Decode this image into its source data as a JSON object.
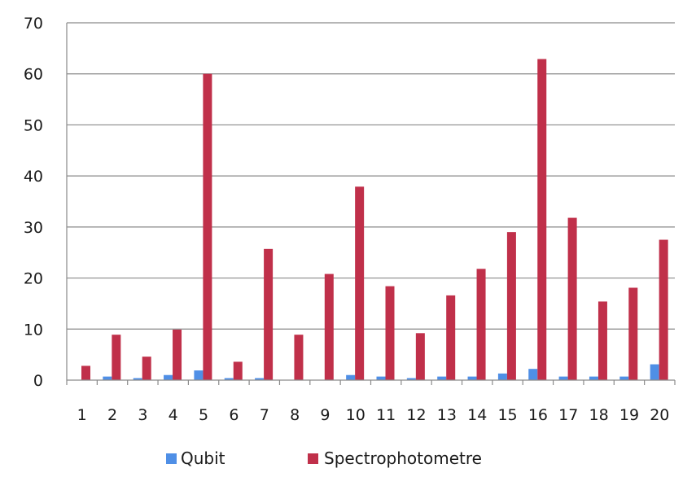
{
  "chart_data": {
    "type": "bar",
    "title": "",
    "xlabel": "",
    "ylabel": "",
    "categories": [
      "1",
      "2",
      "3",
      "4",
      "5",
      "6",
      "7",
      "8",
      "9",
      "10",
      "11",
      "12",
      "13",
      "14",
      "15",
      "16",
      "17",
      "18",
      "19",
      "20"
    ],
    "ylim": [
      0,
      70
    ],
    "yticks": [
      0,
      10,
      20,
      30,
      40,
      50,
      60,
      70
    ],
    "grid": true,
    "legend": "bottom",
    "series": [
      {
        "name": "Qubit",
        "color": "#4f8fe6",
        "values": [
          0,
          0.7,
          0.4,
          1.0,
          1.9,
          0.4,
          0.4,
          0,
          0,
          1.0,
          0.7,
          0.4,
          0.7,
          0.7,
          1.3,
          2.2,
          0.7,
          0.7,
          0.7,
          3.1
        ]
      },
      {
        "name": "Spectrophotometre",
        "color": "#c0304a",
        "values": [
          2.8,
          8.9,
          4.6,
          9.9,
          60.0,
          3.6,
          25.7,
          8.9,
          20.8,
          37.9,
          18.4,
          9.2,
          16.6,
          21.8,
          29.0,
          62.9,
          31.8,
          15.4,
          18.1,
          27.5
        ]
      }
    ]
  }
}
